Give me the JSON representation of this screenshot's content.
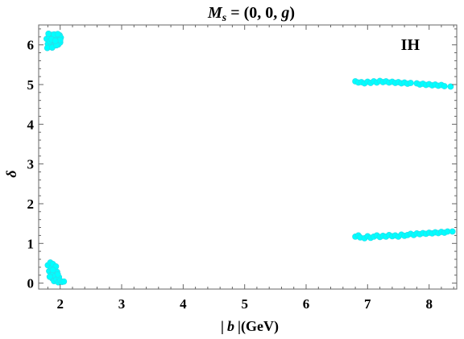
{
  "chart_data": {
    "type": "scatter",
    "title_parts": {
      "m": "M",
      "s": "s",
      "rest": " = (0, 0, ",
      "g": "g",
      "close": ")"
    },
    "xlabel_parts": {
      "bar_left": "|",
      "b": "b",
      "bar_right": "|",
      "unit": "(GeV)"
    },
    "ylabel": "δ",
    "annotation": "IH",
    "xlim": [
      1.65,
      8.45
    ],
    "ylim": [
      -0.15,
      6.5
    ],
    "xticks": [
      2,
      3,
      4,
      5,
      6,
      7,
      8
    ],
    "yticks": [
      0,
      1,
      2,
      3,
      4,
      5,
      6
    ],
    "marker_color": "#00FFFF",
    "marker_edge_color": "#2FD8E6",
    "grid": false,
    "frame": true,
    "points": [
      [
        1.78,
        6.15
      ],
      [
        1.8,
        6.02
      ],
      [
        1.82,
        6.2
      ],
      [
        1.84,
        5.95
      ],
      [
        1.85,
        6.1
      ],
      [
        1.86,
        6.25
      ],
      [
        1.88,
        6.05
      ],
      [
        1.89,
        6.18
      ],
      [
        1.9,
        5.98
      ],
      [
        1.91,
        6.12
      ],
      [
        1.92,
        6.22
      ],
      [
        1.93,
        6.04
      ],
      [
        1.94,
        6.16
      ],
      [
        1.95,
        6.08
      ],
      [
        1.96,
        6.2
      ],
      [
        1.97,
        6.01
      ],
      [
        1.98,
        6.14
      ],
      [
        1.99,
        6.24
      ],
      [
        2.0,
        6.06
      ],
      [
        2.01,
        6.18
      ],
      [
        1.79,
        5.92
      ],
      [
        1.81,
        6.28
      ],
      [
        1.83,
        6.09
      ],
      [
        1.87,
        5.93
      ],
      [
        1.9,
        6.26
      ],
      [
        1.94,
        5.99
      ],
      [
        1.96,
        6.27
      ],
      [
        2.0,
        6.12
      ],
      [
        1.86,
        6.14
      ],
      [
        1.92,
        6.1
      ],
      [
        1.8,
        0.45
      ],
      [
        1.82,
        0.3
      ],
      [
        1.84,
        0.52
      ],
      [
        1.85,
        0.2
      ],
      [
        1.86,
        0.38
      ],
      [
        1.87,
        0.12
      ],
      [
        1.88,
        0.48
      ],
      [
        1.89,
        0.26
      ],
      [
        1.9,
        0.05
      ],
      [
        1.91,
        0.34
      ],
      [
        1.92,
        0.18
      ],
      [
        1.93,
        0.42
      ],
      [
        1.94,
        0.09
      ],
      [
        1.95,
        0.28
      ],
      [
        1.97,
        0.02
      ],
      [
        1.98,
        0.15
      ],
      [
        2.0,
        0.06
      ],
      [
        2.03,
        0.03
      ],
      [
        2.06,
        0.04
      ],
      [
        1.83,
        0.16
      ],
      [
        1.88,
        0.33
      ],
      [
        1.96,
        0.22
      ],
      [
        6.8,
        5.08
      ],
      [
        6.85,
        5.05
      ],
      [
        6.9,
        5.06
      ],
      [
        6.95,
        5.03
      ],
      [
        7.0,
        5.07
      ],
      [
        7.05,
        5.04
      ],
      [
        7.1,
        5.08
      ],
      [
        7.15,
        5.05
      ],
      [
        7.2,
        5.09
      ],
      [
        7.25,
        5.06
      ],
      [
        7.3,
        5.08
      ],
      [
        7.35,
        5.05
      ],
      [
        7.4,
        5.07
      ],
      [
        7.45,
        5.04
      ],
      [
        7.5,
        5.06
      ],
      [
        7.55,
        5.03
      ],
      [
        7.6,
        5.05
      ],
      [
        7.65,
        5.02
      ],
      [
        7.7,
        5.04
      ],
      [
        7.8,
        5.03
      ],
      [
        7.85,
        5.0
      ],
      [
        7.9,
        5.02
      ],
      [
        7.95,
        4.99
      ],
      [
        8.0,
        5.01
      ],
      [
        8.05,
        4.98
      ],
      [
        8.1,
        5.0
      ],
      [
        8.15,
        4.97
      ],
      [
        8.2,
        4.99
      ],
      [
        8.25,
        4.96
      ],
      [
        8.35,
        4.95
      ],
      [
        6.8,
        1.17
      ],
      [
        6.85,
        1.2
      ],
      [
        6.88,
        1.15
      ],
      [
        6.95,
        1.13
      ],
      [
        7.0,
        1.18
      ],
      [
        7.05,
        1.14
      ],
      [
        7.1,
        1.17
      ],
      [
        7.15,
        1.2
      ],
      [
        7.2,
        1.16
      ],
      [
        7.25,
        1.19
      ],
      [
        7.3,
        1.17
      ],
      [
        7.35,
        1.21
      ],
      [
        7.4,
        1.18
      ],
      [
        7.45,
        1.2
      ],
      [
        7.5,
        1.17
      ],
      [
        7.55,
        1.22
      ],
      [
        7.6,
        1.19
      ],
      [
        7.65,
        1.21
      ],
      [
        7.7,
        1.24
      ],
      [
        7.75,
        1.21
      ],
      [
        7.8,
        1.25
      ],
      [
        7.85,
        1.23
      ],
      [
        7.9,
        1.26
      ],
      [
        7.95,
        1.24
      ],
      [
        8.0,
        1.27
      ],
      [
        8.05,
        1.25
      ],
      [
        8.1,
        1.28
      ],
      [
        8.15,
        1.26
      ],
      [
        8.2,
        1.29
      ],
      [
        8.25,
        1.27
      ],
      [
        8.3,
        1.3
      ],
      [
        8.38,
        1.3
      ]
    ]
  }
}
